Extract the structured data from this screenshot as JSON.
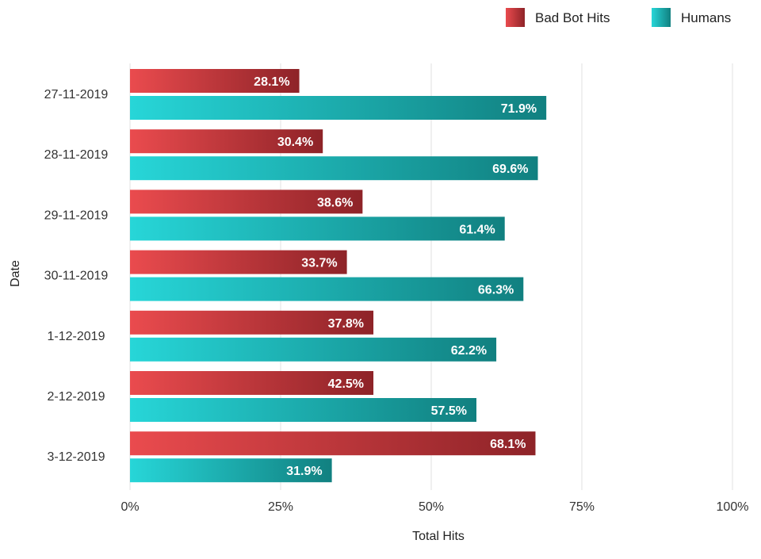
{
  "chart_data": {
    "type": "bar",
    "orientation": "horizontal",
    "title": "",
    "xlabel": "Total Hits",
    "ylabel": "Date",
    "categories": [
      "27-11-2019",
      "28-11-2019",
      "29-11-2019",
      "30-11-2019",
      "1-12-2019",
      "2-12-2019",
      "3-12-2019"
    ],
    "series": [
      {
        "name": "Bad Bot Hits",
        "values": [
          28.1,
          30.4,
          38.6,
          33.7,
          37.8,
          42.5,
          68.1
        ],
        "labels": [
          "28.1%",
          "30.4%",
          "38.6%",
          "33.7%",
          "37.8%",
          "42.5%",
          "68.1%"
        ],
        "display_values": [
          28.1,
          32.0,
          38.6,
          36.0,
          40.4,
          40.4,
          67.3
        ],
        "gradient": [
          "#ea4b4e",
          "#8e2328"
        ]
      },
      {
        "name": "Humans",
        "values": [
          71.9,
          69.6,
          61.4,
          66.3,
          62.2,
          57.5,
          31.9
        ],
        "labels": [
          "71.9%",
          "69.6%",
          "61.4%",
          "66.3%",
          "62.2%",
          "57.5%",
          "31.9%"
        ],
        "display_values": [
          69.1,
          67.7,
          62.2,
          65.3,
          60.8,
          57.5,
          33.5
        ],
        "gradient": [
          "#27d6d8",
          "#118080"
        ]
      }
    ],
    "xlim": [
      0,
      100
    ],
    "xticks": [
      0,
      25,
      50,
      75,
      100
    ],
    "xtick_labels": [
      "0%",
      "25%",
      "50%",
      "75%",
      "100%"
    ],
    "grid": true,
    "legend_position": "top-right"
  }
}
